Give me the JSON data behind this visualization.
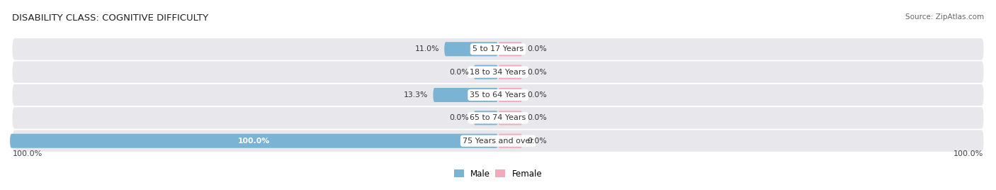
{
  "title": "DISABILITY CLASS: COGNITIVE DIFFICULTY",
  "source": "Source: ZipAtlas.com",
  "categories": [
    "5 to 17 Years",
    "18 to 34 Years",
    "35 to 64 Years",
    "65 to 74 Years",
    "75 Years and over"
  ],
  "male_values": [
    11.0,
    0.0,
    13.3,
    0.0,
    100.0
  ],
  "female_values": [
    0.0,
    0.0,
    0.0,
    0.0,
    0.0
  ],
  "male_color": "#7ab3d4",
  "female_color": "#f4a8bc",
  "bar_bg_color": "#e8e8ec",
  "bar_height": 0.62,
  "min_bar_width": 5.0,
  "x_max": 100.0,
  "title_fontsize": 9.5,
  "label_fontsize": 8,
  "tick_fontsize": 8,
  "center_label_color": "#333333",
  "bottom_left_label": "100.0%",
  "bottom_right_label": "100.0%"
}
